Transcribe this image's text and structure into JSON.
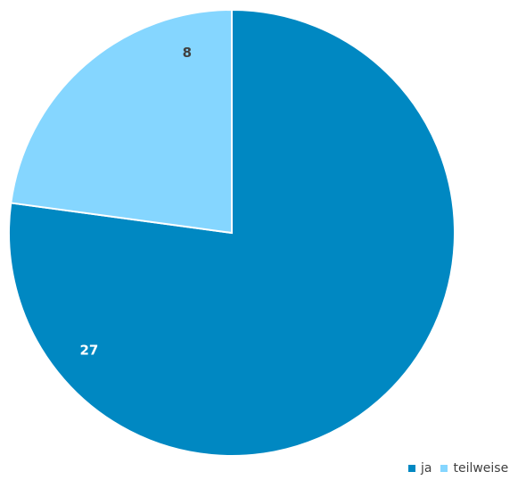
{
  "chart_data": {
    "type": "pie",
    "categories": [
      "ja",
      "teilweise"
    ],
    "values": [
      27,
      8
    ],
    "colors": [
      "#0088c2",
      "#85d6ff"
    ],
    "label_colors": [
      "#ffffff",
      "#404040"
    ],
    "legend_position": "bottom-right",
    "title": ""
  }
}
